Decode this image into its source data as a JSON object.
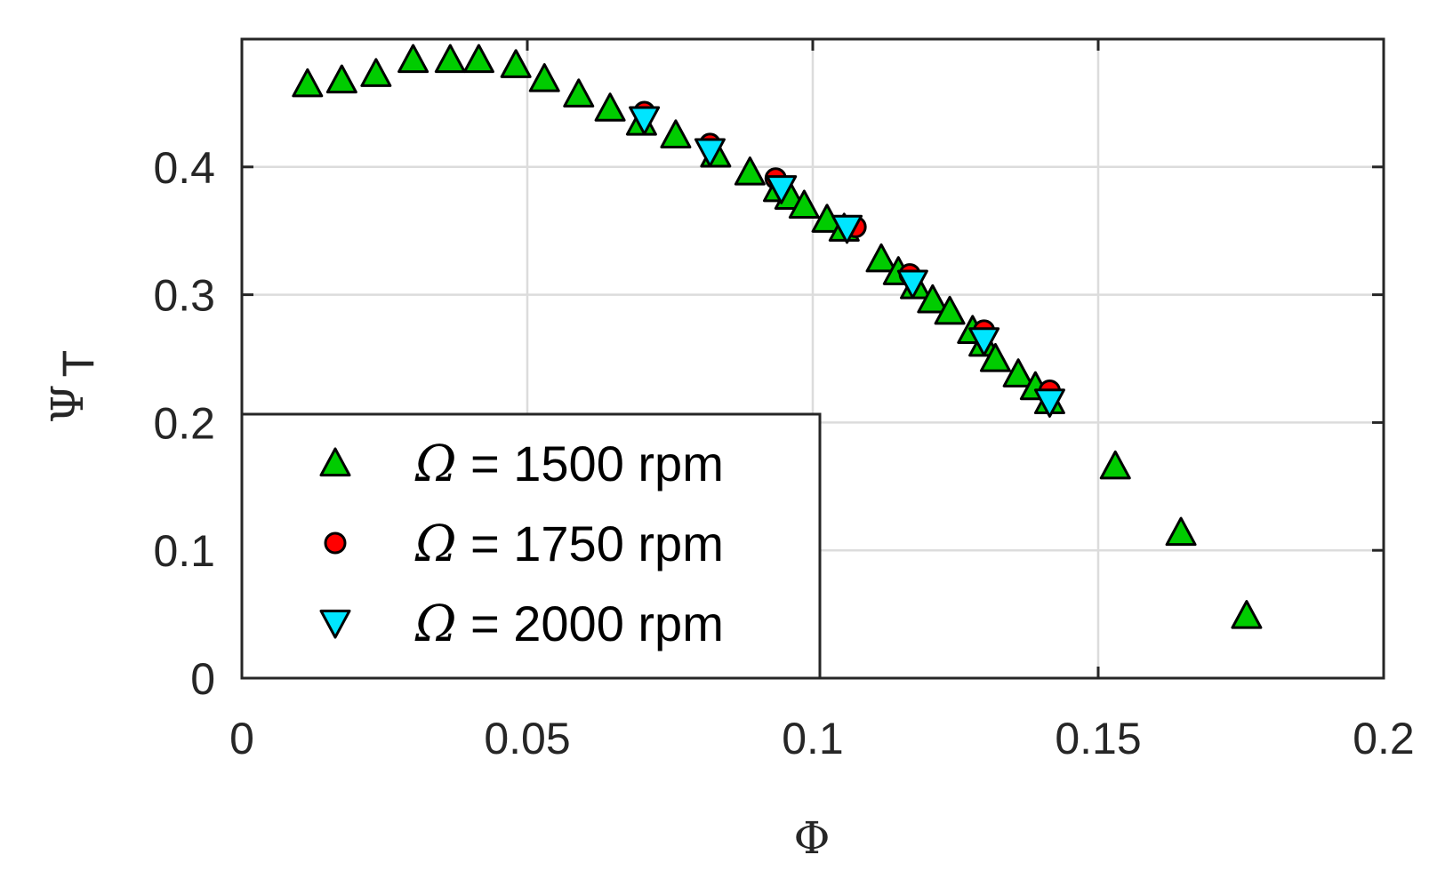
{
  "chart_data": {
    "type": "scatter",
    "xlabel": "Φ",
    "ylabel": "Ψ",
    "ylabel_subscript": "T",
    "xlim": [
      0,
      0.2
    ],
    "ylim": [
      0,
      0.5
    ],
    "xticks": [
      0,
      0.05,
      0.1,
      0.15,
      0.2
    ],
    "xtick_labels": [
      "0",
      "0.05",
      "0.1",
      "0.15",
      "0.2"
    ],
    "yticks": [
      0,
      0.1,
      0.2,
      0.3,
      0.4
    ],
    "ytick_labels": [
      "0",
      "0.1",
      "0.2",
      "0.3",
      "0.4"
    ],
    "grid": true,
    "legend_position": "bottom-left",
    "series": [
      {
        "name": "Ω = 1500 rpm",
        "legend_symbol": "Ω",
        "legend_text": " = 1500 rpm",
        "marker": "triangle-up",
        "color": "#00cc00",
        "x": [
          0.0115,
          0.0175,
          0.0235,
          0.03,
          0.0365,
          0.0415,
          0.048,
          0.053,
          0.059,
          0.0645,
          0.07,
          0.076,
          0.083,
          0.089,
          0.094,
          0.096,
          0.0985,
          0.1025,
          0.1055,
          0.112,
          0.115,
          0.118,
          0.121,
          0.124,
          0.128,
          0.13,
          0.132,
          0.136,
          0.139,
          0.1415,
          0.153,
          0.1645,
          0.176
        ],
        "y": [
          0.465,
          0.468,
          0.473,
          0.484,
          0.484,
          0.484,
          0.48,
          0.469,
          0.457,
          0.446,
          0.435,
          0.425,
          0.41,
          0.396,
          0.383,
          0.377,
          0.37,
          0.359,
          0.352,
          0.328,
          0.318,
          0.307,
          0.296,
          0.287,
          0.272,
          0.262,
          0.25,
          0.238,
          0.228,
          0.217,
          0.166,
          0.114,
          0.049
        ]
      },
      {
        "name": "Ω = 1750 rpm",
        "legend_symbol": "Ω",
        "legend_text": " = 1750 rpm",
        "marker": "circle",
        "color": "#ff0000",
        "x": [
          0.0705,
          0.082,
          0.0935,
          0.1075,
          0.117,
          0.13,
          0.1415
        ],
        "y": [
          0.443,
          0.418,
          0.391,
          0.353,
          0.316,
          0.272,
          0.225
        ]
      },
      {
        "name": "Ω = 2000 rpm",
        "legend_symbol": "Ω",
        "legend_text": " = 2000 rpm",
        "marker": "triangle-down",
        "color": "#00e5ff",
        "x": [
          0.0705,
          0.082,
          0.0945,
          0.106,
          0.1175,
          0.13,
          0.1415
        ],
        "y": [
          0.437,
          0.412,
          0.383,
          0.352,
          0.309,
          0.264,
          0.216
        ]
      }
    ]
  }
}
